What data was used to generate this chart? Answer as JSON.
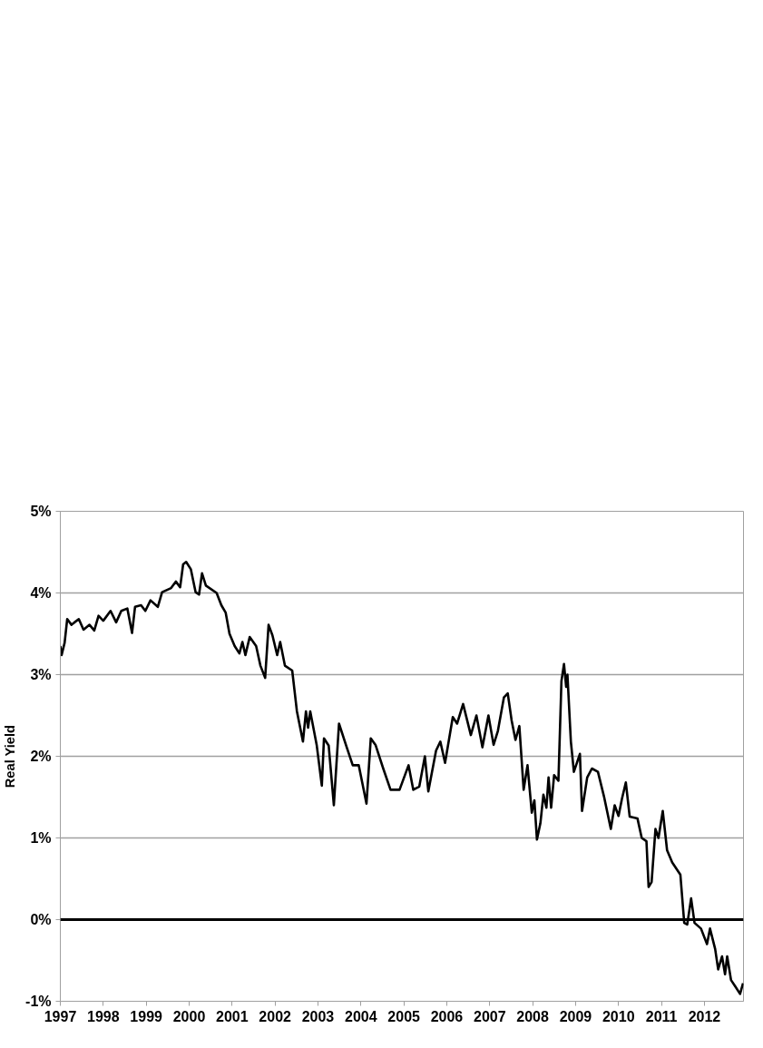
{
  "chart_data": {
    "type": "line",
    "ylabel": "Real Yield",
    "x": [
      1997.0,
      1997.03,
      1997.1,
      1997.16,
      1997.26,
      1997.33,
      1997.43,
      1997.54,
      1997.68,
      1997.79,
      1997.89,
      1998.0,
      1998.17,
      1998.3,
      1998.42,
      1998.56,
      1998.67,
      1998.74,
      1998.88,
      1998.98,
      1999.1,
      1999.27,
      1999.37,
      1999.58,
      1999.69,
      1999.79,
      1999.86,
      1999.93,
      2000.04,
      2000.15,
      2000.23,
      2000.3,
      2000.39,
      2000.64,
      2000.75,
      2000.85,
      2000.94,
      2001.06,
      2001.17,
      2001.24,
      2001.31,
      2001.41,
      2001.56,
      2001.66,
      2001.77,
      2001.85,
      2001.94,
      2002.05,
      2002.12,
      2002.23,
      2002.4,
      2002.51,
      2002.65,
      2002.72,
      2002.77,
      2002.82,
      2002.97,
      2003.09,
      2003.14,
      2003.25,
      2003.37,
      2003.49,
      2003.67,
      2003.81,
      2003.95,
      2004.13,
      2004.23,
      2004.34,
      2004.52,
      2004.69,
      2004.9,
      2005.11,
      2005.22,
      2005.36,
      2005.49,
      2005.57,
      2005.75,
      2005.85,
      2005.96,
      2006.14,
      2006.24,
      2006.38,
      2006.56,
      2006.69,
      2006.83,
      2006.97,
      2007.09,
      2007.19,
      2007.33,
      2007.42,
      2007.51,
      2007.6,
      2007.69,
      2007.79,
      2007.88,
      2007.98,
      2008.04,
      2008.1,
      2008.18,
      2008.25,
      2008.32,
      2008.37,
      2008.43,
      2008.5,
      2008.6,
      2008.67,
      2008.73,
      2008.78,
      2008.81,
      2008.89,
      2008.96,
      2009.1,
      2009.15,
      2009.27,
      2009.38,
      2009.52,
      2009.66,
      2009.82,
      2009.91,
      2010.0,
      2010.08,
      2010.17,
      2010.26,
      2010.44,
      2010.54,
      2010.65,
      2010.7,
      2010.77,
      2010.86,
      2010.93,
      2011.03,
      2011.13,
      2011.25,
      2011.44,
      2011.53,
      2011.6,
      2011.69,
      2011.77,
      2011.92,
      2012.06,
      2012.13,
      2012.25,
      2012.32,
      2012.41,
      2012.48,
      2012.53,
      2012.62,
      2012.72,
      2012.83,
      2012.9
    ],
    "series": [
      {
        "color": "#000000",
        "values": [
          3.35,
          3.24,
          3.39,
          3.68,
          3.61,
          3.64,
          3.68,
          3.55,
          3.61,
          3.54,
          3.72,
          3.66,
          3.78,
          3.64,
          3.78,
          3.81,
          3.51,
          3.83,
          3.85,
          3.78,
          3.91,
          3.83,
          4.01,
          4.06,
          4.14,
          4.07,
          4.35,
          4.38,
          4.29,
          4.01,
          3.98,
          4.24,
          4.09,
          4.0,
          3.85,
          3.76,
          3.5,
          3.35,
          3.26,
          3.4,
          3.24,
          3.46,
          3.35,
          3.11,
          2.96,
          3.61,
          3.48,
          3.24,
          3.4,
          3.11,
          3.05,
          2.55,
          2.18,
          2.55,
          2.35,
          2.55,
          2.14,
          1.64,
          2.22,
          2.13,
          1.4,
          2.4,
          2.11,
          1.89,
          1.89,
          1.42,
          2.22,
          2.14,
          1.85,
          1.59,
          1.59,
          1.89,
          1.59,
          1.63,
          2.0,
          1.57,
          2.07,
          2.18,
          1.92,
          2.48,
          2.4,
          2.64,
          2.26,
          2.5,
          2.11,
          2.5,
          2.14,
          2.31,
          2.72,
          2.77,
          2.44,
          2.2,
          2.37,
          1.59,
          1.89,
          1.31,
          1.46,
          0.98,
          1.18,
          1.53,
          1.37,
          1.74,
          1.37,
          1.77,
          1.7,
          2.92,
          3.13,
          2.85,
          3.0,
          2.18,
          1.81,
          2.03,
          1.33,
          1.74,
          1.85,
          1.81,
          1.51,
          1.11,
          1.4,
          1.27,
          1.48,
          1.68,
          1.26,
          1.24,
          1.0,
          0.96,
          0.4,
          0.46,
          1.11,
          1.0,
          1.33,
          0.85,
          0.7,
          0.55,
          -0.04,
          -0.06,
          0.26,
          -0.04,
          -0.11,
          -0.3,
          -0.11,
          -0.36,
          -0.61,
          -0.45,
          -0.67,
          -0.45,
          -0.74,
          -0.82,
          -0.91,
          -0.78
        ]
      }
    ],
    "xlim": [
      1997,
      2012.91
    ],
    "xticks": [
      1997,
      1998,
      1999,
      2000,
      2001,
      2002,
      2003,
      2004,
      2005,
      2006,
      2007,
      2008,
      2009,
      2010,
      2011,
      2012
    ],
    "ylim": [
      -1,
      5
    ],
    "yticks": [
      {
        "value": -1,
        "label": "-1%"
      },
      {
        "value": 0,
        "label": "0%"
      },
      {
        "value": 1,
        "label": "1%"
      },
      {
        "value": 2,
        "label": "2%"
      },
      {
        "value": 3,
        "label": "3%"
      },
      {
        "value": 4,
        "label": "4%"
      },
      {
        "value": 5,
        "label": "5%"
      }
    ],
    "ref_lines": [
      {
        "axis": "y",
        "value": 0,
        "color": "#000000"
      }
    ],
    "grid": "y",
    "marker": "none",
    "line_style": "solid"
  }
}
